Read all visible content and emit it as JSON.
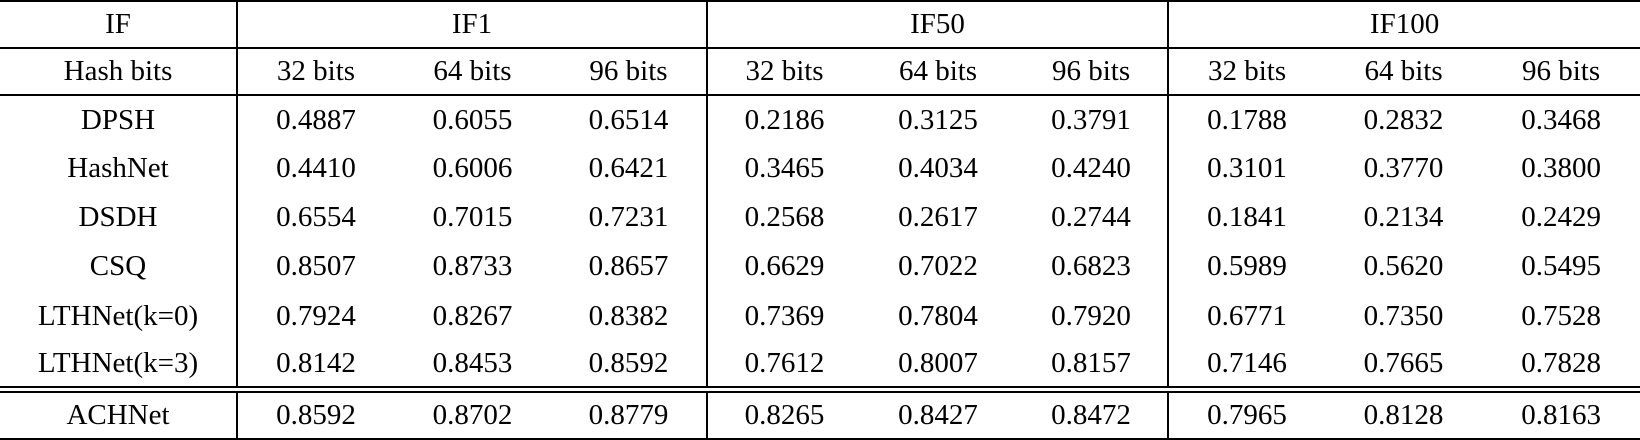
{
  "table": {
    "corner_header": "IF",
    "group_headers": [
      "IF1",
      "IF50",
      "IF100"
    ],
    "row_header": "Hash bits",
    "bit_headers": [
      "32 bits",
      "64 bits",
      "96 bits"
    ],
    "rows": [
      {
        "label": "DPSH",
        "values": [
          "0.4887",
          "0.6055",
          "0.6514",
          "0.2186",
          "0.3125",
          "0.3791",
          "0.1788",
          "0.2832",
          "0.3468"
        ],
        "bold": [
          0,
          0,
          0,
          0,
          0,
          0,
          0,
          0,
          0
        ]
      },
      {
        "label": "HashNet",
        "values": [
          "0.4410",
          "0.6006",
          "0.6421",
          "0.3465",
          "0.4034",
          "0.4240",
          "0.3101",
          "0.3770",
          "0.3800"
        ],
        "bold": [
          0,
          0,
          0,
          0,
          0,
          0,
          0,
          0,
          0
        ]
      },
      {
        "label": "DSDH",
        "values": [
          "0.6554",
          "0.7015",
          "0.7231",
          "0.2568",
          "0.2617",
          "0.2744",
          "0.1841",
          "0.2134",
          "0.2429"
        ],
        "bold": [
          0,
          0,
          0,
          0,
          0,
          0,
          0,
          0,
          0
        ]
      },
      {
        "label": "CSQ",
        "values": [
          "0.8507",
          "0.8733",
          "0.8657",
          "0.6629",
          "0.7022",
          "0.6823",
          "0.5989",
          "0.5620",
          "0.5495"
        ],
        "bold": [
          0,
          1,
          0,
          0,
          0,
          0,
          0,
          0,
          0
        ]
      },
      {
        "label": "LTHNet(k=0)",
        "values": [
          "0.7924",
          "0.8267",
          "0.8382",
          "0.7369",
          "0.7804",
          "0.7920",
          "0.6771",
          "0.7350",
          "0.7528"
        ],
        "bold": [
          0,
          0,
          0,
          0,
          0,
          0,
          0,
          0,
          0
        ]
      },
      {
        "label": "LTHNet(k=3)",
        "values": [
          "0.8142",
          "0.8453",
          "0.8592",
          "0.7612",
          "0.8007",
          "0.8157",
          "0.7146",
          "0.7665",
          "0.7828"
        ],
        "bold": [
          0,
          0,
          0,
          0,
          0,
          0,
          0,
          0,
          0
        ]
      },
      {
        "label": "ACHNet",
        "values": [
          "0.8592",
          "0.8702",
          "0.8779",
          "0.8265",
          "0.8427",
          "0.8472",
          "0.7965",
          "0.8128",
          "0.8163"
        ],
        "bold": [
          1,
          0,
          1,
          1,
          1,
          1,
          1,
          1,
          1
        ],
        "separator_above": "double"
      }
    ],
    "colors": {
      "text": "#000000",
      "background": "#ffffff",
      "border": "#000000"
    }
  }
}
